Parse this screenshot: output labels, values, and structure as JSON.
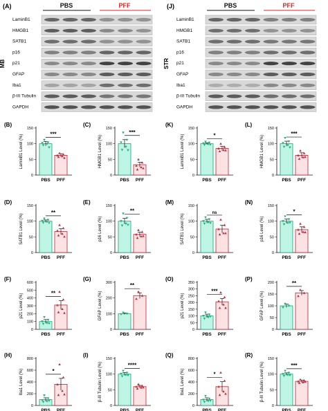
{
  "colors": {
    "pbs_fill": "#bff5e4",
    "pbs_stroke": "#19a06e",
    "pbs_point": "#1fb27a",
    "pff_fill": "#fde2e4",
    "pff_stroke": "#b2232f",
    "pff_point": "#c0303c",
    "pbs_header": "#111111",
    "pff_header": "#e02020"
  },
  "blots": [
    {
      "panel_label": "(A)",
      "region": "MB",
      "group1": "PBS",
      "group2": "PFF",
      "proteins": [
        "LaminB1",
        "HMGB1",
        "SATB1",
        "p16",
        "p21",
        "GFAP",
        "Iba1",
        "β-III Tubulin",
        "GAPDH"
      ],
      "intensity": [
        [
          0.55,
          0.55,
          0.55,
          0.3,
          0.3,
          0.3
        ],
        [
          0.6,
          0.6,
          0.6,
          0.35,
          0.35,
          0.3
        ],
        [
          0.5,
          0.5,
          0.5,
          0.3,
          0.3,
          0.3
        ],
        [
          0.4,
          0.4,
          0.4,
          0.55,
          0.55,
          0.55
        ],
        [
          0.35,
          0.35,
          0.35,
          0.75,
          0.75,
          0.75
        ],
        [
          0.35,
          0.35,
          0.35,
          0.6,
          0.6,
          0.6
        ],
        [
          0.2,
          0.2,
          0.2,
          0.5,
          0.5,
          0.5
        ],
        [
          0.6,
          0.6,
          0.6,
          0.45,
          0.45,
          0.45
        ],
        [
          0.65,
          0.65,
          0.65,
          0.65,
          0.65,
          0.65
        ]
      ]
    },
    {
      "panel_label": "(J)",
      "region": "STR",
      "group1": "PBS",
      "group2": "PFF",
      "proteins": [
        "LaminB1",
        "HMGB1",
        "SATB1",
        "p16",
        "p21",
        "GFAP",
        "Iba1",
        "β-III Tubulin",
        "GAPDH"
      ],
      "intensity": [
        [
          0.55,
          0.55,
          0.55,
          0.4,
          0.4,
          0.4
        ],
        [
          0.5,
          0.5,
          0.5,
          0.3,
          0.3,
          0.3
        ],
        [
          0.5,
          0.5,
          0.5,
          0.45,
          0.45,
          0.45
        ],
        [
          0.4,
          0.4,
          0.4,
          0.5,
          0.5,
          0.5
        ],
        [
          0.35,
          0.35,
          0.35,
          0.75,
          0.75,
          0.75
        ],
        [
          0.35,
          0.35,
          0.35,
          0.6,
          0.6,
          0.6
        ],
        [
          0.15,
          0.15,
          0.15,
          0.35,
          0.35,
          0.35
        ],
        [
          0.6,
          0.6,
          0.6,
          0.5,
          0.5,
          0.5
        ],
        [
          0.65,
          0.65,
          0.65,
          0.65,
          0.65,
          0.65
        ]
      ]
    }
  ],
  "chart_data": [
    {
      "panel": "(B)",
      "type": "bar",
      "ylabel": "LaminB1 Level (%)",
      "categories": [
        "PBS",
        "PFF"
      ],
      "values": [
        100,
        63
      ],
      "errors": [
        7,
        5
      ],
      "ylim": [
        0,
        150
      ],
      "yticks": [
        0,
        50,
        100,
        150
      ],
      "sig": "***",
      "points": [
        [
          112,
          104,
          102,
          99,
          95,
          88
        ],
        [
          70,
          66,
          63,
          60,
          58,
          55
        ]
      ]
    },
    {
      "panel": "(C)",
      "type": "bar",
      "ylabel": "HMGB1 Level (%)",
      "categories": [
        "PBS",
        "PFF"
      ],
      "values": [
        100,
        33
      ],
      "errors": [
        13,
        8
      ],
      "ylim": [
        0,
        150
      ],
      "yticks": [
        0,
        50,
        100,
        150
      ],
      "sig": "***",
      "points": [
        [
          135,
          112,
          104,
          90,
          80,
          79
        ],
        [
          50,
          40,
          30,
          25,
          18,
          22
        ]
      ]
    },
    {
      "panel": "(K)",
      "type": "bar",
      "ylabel": "LaminB1 Level (%)",
      "categories": [
        "PBS",
        "PFF"
      ],
      "values": [
        100,
        85
      ],
      "errors": [
        3,
        7
      ],
      "ylim": [
        0,
        150
      ],
      "yticks": [
        0,
        50,
        100,
        150
      ],
      "sig": "*",
      "points": [
        [
          106,
          103,
          101,
          98,
          96,
          97
        ],
        [
          100,
          90,
          85,
          80,
          76,
          79
        ]
      ]
    },
    {
      "panel": "(L)",
      "type": "bar",
      "ylabel": "HMGB1 Level (%)",
      "categories": [
        "PBS",
        "PFF"
      ],
      "values": [
        100,
        63
      ],
      "errors": [
        8,
        8
      ],
      "ylim": [
        0,
        150
      ],
      "yticks": [
        0,
        50,
        100,
        150
      ],
      "sig": "***",
      "points": [
        [
          118,
          107,
          102,
          95,
          90,
          88
        ],
        [
          78,
          70,
          63,
          57,
          52,
          58
        ]
      ]
    },
    {
      "panel": "(D)",
      "type": "bar",
      "ylabel": "SATB1 Level (%)",
      "categories": [
        "PBS",
        "PFF"
      ],
      "values": [
        100,
        67
      ],
      "errors": [
        4,
        9
      ],
      "ylim": [
        0,
        150
      ],
      "yticks": [
        0,
        50,
        100,
        150
      ],
      "sig": "**",
      "points": [
        [
          108,
          104,
          101,
          98,
          95,
          94
        ],
        [
          88,
          78,
          70,
          60,
          55,
          51
        ]
      ]
    },
    {
      "panel": "(E)",
      "type": "bar",
      "ylabel": "p16 Level (%)",
      "categories": [
        "PBS",
        "PFF"
      ],
      "values": [
        100,
        58
      ],
      "errors": [
        9,
        7
      ],
      "ylim": [
        0,
        150
      ],
      "yticks": [
        0,
        50,
        100,
        150
      ],
      "sig": "**",
      "points": [
        [
          124,
          110,
          100,
          92,
          86,
          88
        ],
        [
          72,
          66,
          58,
          52,
          47,
          53
        ]
      ]
    },
    {
      "panel": "(M)",
      "type": "bar",
      "ylabel": "SATB1 Level (%)",
      "categories": [
        "PBS",
        "PFF"
      ],
      "values": [
        100,
        75
      ],
      "errors": [
        6,
        12
      ],
      "ylim": [
        0,
        150
      ],
      "yticks": [
        0,
        50,
        100,
        150
      ],
      "sig": "ns",
      "points": [
        [
          112,
          106,
          100,
          96,
          92,
          94
        ],
        [
          105,
          88,
          75,
          62,
          58,
          62
        ]
      ]
    },
    {
      "panel": "(N)",
      "type": "bar",
      "ylabel": "p16 Level (%)",
      "categories": [
        "PBS",
        "PFF"
      ],
      "values": [
        100,
        73
      ],
      "errors": [
        7,
        9
      ],
      "ylim": [
        0,
        150
      ],
      "yticks": [
        0,
        50,
        100,
        150
      ],
      "sig": "*",
      "points": [
        [
          115,
          106,
          100,
          94,
          90,
          95
        ],
        [
          92,
          82,
          73,
          66,
          60,
          65
        ]
      ]
    },
    {
      "panel": "(F)",
      "type": "bar",
      "ylabel": "p21 Level (%)",
      "categories": [
        "PBS",
        "PFF"
      ],
      "values": [
        100,
        310
      ],
      "errors": [
        25,
        55
      ],
      "ylim": [
        0,
        600
      ],
      "yticks": [
        0,
        100,
        200,
        300,
        400,
        500,
        600
      ],
      "sig": "**",
      "points": [
        [
          155,
          120,
          100,
          80,
          70,
          75
        ],
        [
          480,
          380,
          310,
          260,
          220,
          210
        ]
      ]
    },
    {
      "panel": "(G)",
      "type": "bar",
      "ylabel": "GFAP Level (%)",
      "categories": [
        "PBS",
        "PFF"
      ],
      "values": [
        100,
        215
      ],
      "errors": [
        5,
        18
      ],
      "ylim": [
        0,
        300
      ],
      "yticks": [
        0,
        100,
        200,
        300
      ],
      "sig": "**",
      "points": [
        [
          106,
          100,
          96
        ],
        [
          240,
          215,
          195
        ]
      ]
    },
    {
      "panel": "(O)",
      "type": "bar",
      "ylabel": "p21 Level (%)",
      "categories": [
        "PBS",
        "PFF"
      ],
      "values": [
        100,
        205
      ],
      "errors": [
        13,
        25
      ],
      "ylim": [
        0,
        350
      ],
      "yticks": [
        0,
        50,
        100,
        150,
        200,
        250,
        300,
        350
      ],
      "sig": "***",
      "points": [
        [
          125,
          110,
          100,
          90,
          80,
          95
        ],
        [
          275,
          240,
          210,
          185,
          160,
          160
        ]
      ]
    },
    {
      "panel": "(P)",
      "type": "bar",
      "ylabel": "GFAP Level (%)",
      "categories": [
        "PBS",
        "PFF"
      ],
      "values": [
        100,
        155
      ],
      "errors": [
        7,
        10
      ],
      "ylim": [
        0,
        200
      ],
      "yticks": [
        0,
        50,
        100,
        150,
        200
      ],
      "sig": "**",
      "points": [
        [
          108,
          100,
          93
        ],
        [
          168,
          155,
          142
        ]
      ]
    },
    {
      "panel": "(H)",
      "type": "bar",
      "ylabel": "Iba1 Level (%)",
      "categories": [
        "PBS",
        "PFF"
      ],
      "values": [
        100,
        360
      ],
      "errors": [
        30,
        100
      ],
      "ylim": [
        0,
        800
      ],
      "yticks": [
        0,
        200,
        400,
        600,
        800
      ],
      "sig": "*",
      "points": [
        [
          170,
          120,
          90,
          70,
          60,
          80
        ],
        [
          700,
          480,
          360,
          250,
          180,
          190
        ]
      ]
    },
    {
      "panel": "(I)",
      "type": "bar",
      "ylabel": "β-III Tubulin Level (%)",
      "categories": [
        "PBS",
        "PFF"
      ],
      "values": [
        100,
        60
      ],
      "errors": [
        5,
        4
      ],
      "ylim": [
        0,
        150
      ],
      "yticks": [
        0,
        50,
        100,
        150
      ],
      "sig": "****",
      "points": [
        [
          110,
          104,
          101,
          97,
          93,
          96
        ],
        [
          68,
          63,
          60,
          57,
          54,
          58
        ]
      ]
    },
    {
      "panel": "(Q)",
      "type": "bar",
      "ylabel": "Iba1 Level (%)",
      "categories": [
        "PBS",
        "PFF"
      ],
      "values": [
        100,
        320
      ],
      "errors": [
        30,
        85
      ],
      "ylim": [
        0,
        800
      ],
      "yticks": [
        0,
        200,
        400,
        600,
        800
      ],
      "sig": "*",
      "points": [
        [
          160,
          115,
          95,
          75,
          60,
          80
        ],
        [
          560,
          420,
          320,
          240,
          180,
          200
        ]
      ]
    },
    {
      "panel": "(R)",
      "type": "bar",
      "ylabel": "β-III Tubulin Level (%)",
      "categories": [
        "PBS",
        "PFF"
      ],
      "values": [
        100,
        77
      ],
      "errors": [
        4,
        4
      ],
      "ylim": [
        0,
        150
      ],
      "yticks": [
        0,
        50,
        100,
        150
      ],
      "sig": "***",
      "points": [
        [
          110,
          104,
          100,
          97,
          94,
          96
        ],
        [
          83,
          80,
          77,
          74,
          72,
          76
        ]
      ]
    }
  ]
}
